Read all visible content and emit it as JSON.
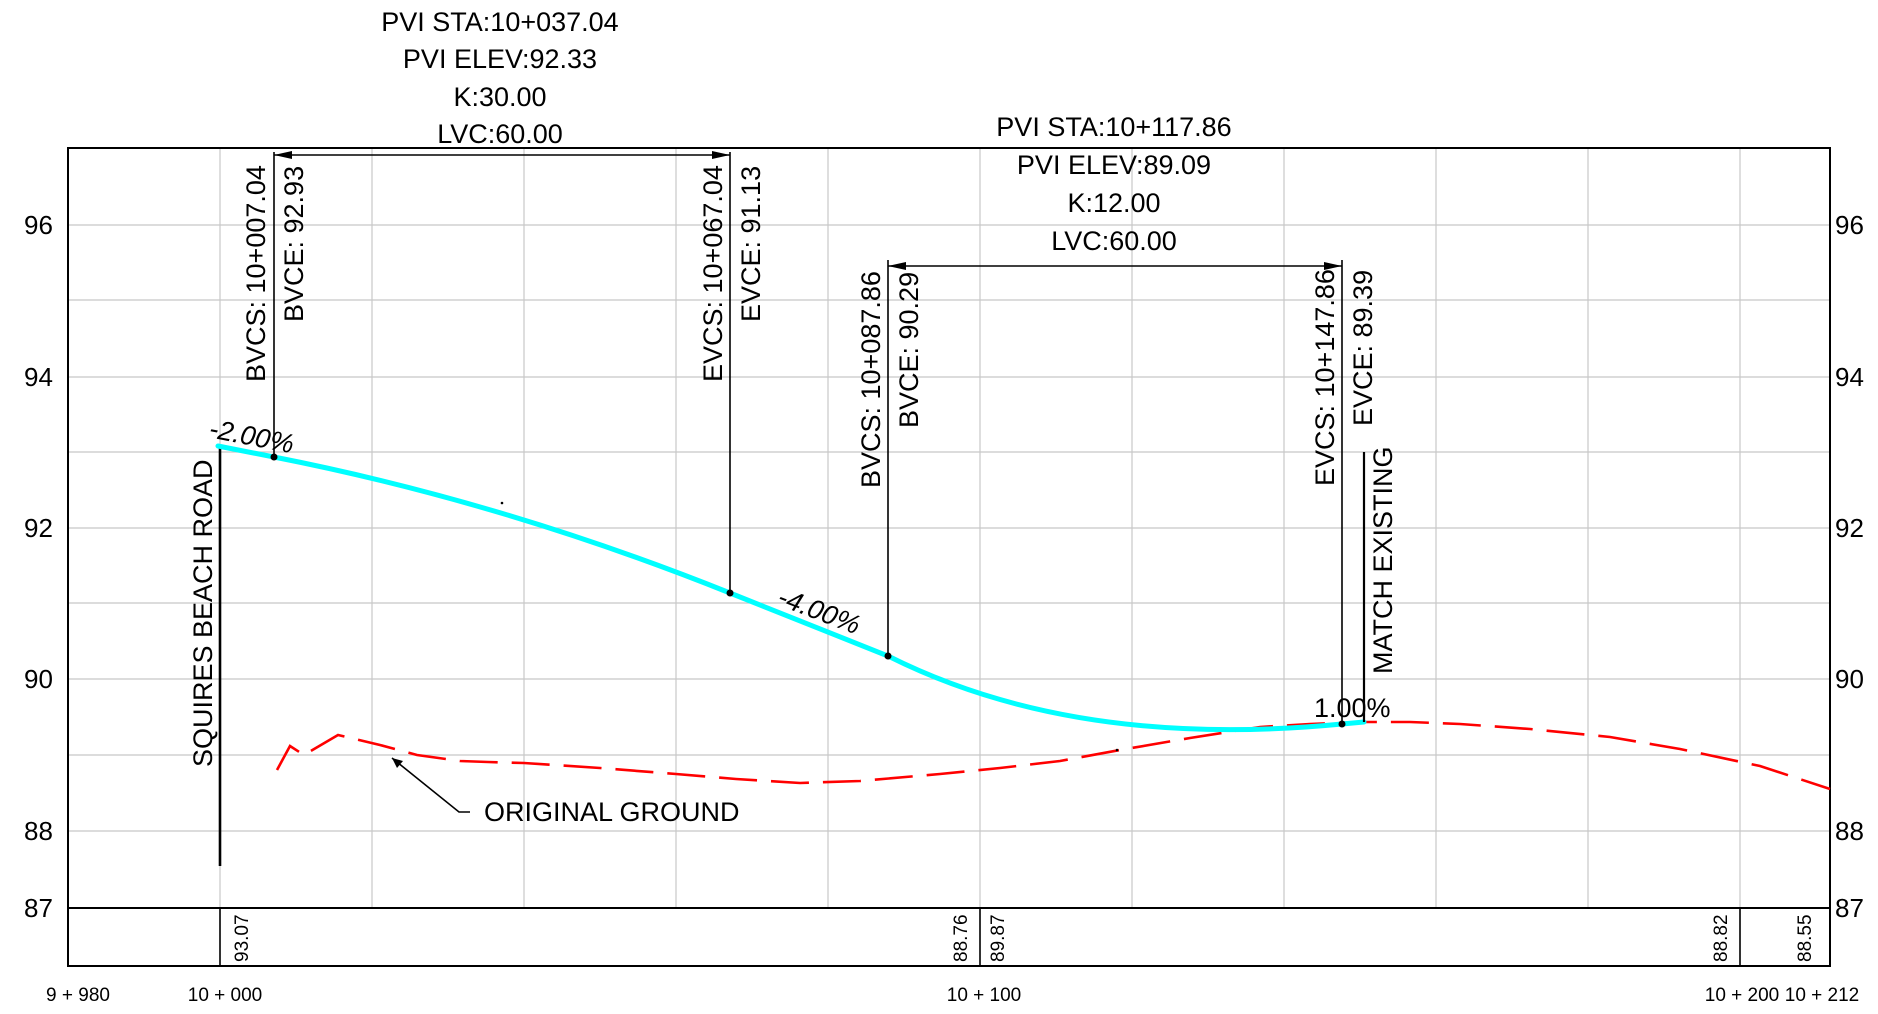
{
  "profile": {
    "elev_ticks": [
      "96",
      "94",
      "92",
      "90",
      "88",
      "87"
    ],
    "station_ticks": [
      "9 + 980",
      "10 + 000",
      "10 + 100",
      "10 + 200",
      "10 + 212"
    ],
    "bottom_values": [
      "93.07",
      "88.76",
      "89.87",
      "88.82",
      "88.55"
    ],
    "curve1": {
      "pvi_sta": "PVI STA:10+037.04",
      "pvi_elev": "PVI ELEV:92.33",
      "k": "K:30.00",
      "lvc": "LVC:60.00",
      "bvcs": "BVCS: 10+007.04",
      "bvce": "BVCE: 92.93",
      "evcs": "EVCS: 10+067.04",
      "evce": "EVCE: 91.13"
    },
    "curve2": {
      "pvi_sta": "PVI STA:10+117.86",
      "pvi_elev": "PVI ELEV:89.09",
      "k": "K:12.00",
      "lvc": "LVC:60.00",
      "bvcs": "BVCS: 10+087.86",
      "bvce": "BVCE: 90.29",
      "evcs": "EVCS: 10+147.86",
      "evce": "EVCE: 89.39"
    },
    "grades": [
      "-2.00%",
      "-4.00%",
      "1.00%"
    ],
    "labels": {
      "squires": "SQUIRES BEACH ROAD",
      "match": "MATCH EXISTING",
      "original_ground": "ORIGINAL GROUND"
    },
    "colors": {
      "design_profile": "#00ffff",
      "original_ground": "#ff0000",
      "grid": "#c8c8c8"
    }
  }
}
